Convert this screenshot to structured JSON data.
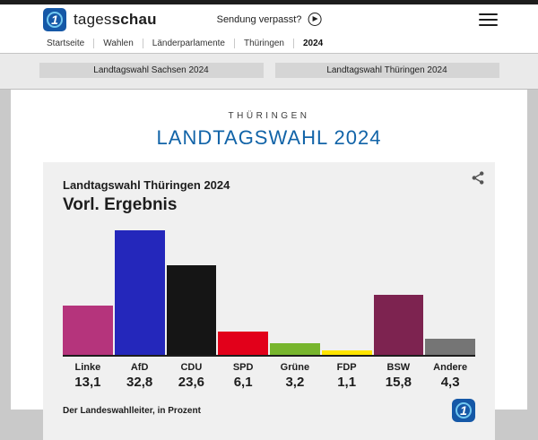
{
  "header": {
    "brand_regular": "tages",
    "brand_bold": "schau",
    "sendung_verpasst": "Sendung verpasst?"
  },
  "breadcrumb": {
    "items": [
      {
        "label": "Startseite",
        "active": false
      },
      {
        "label": "Wahlen",
        "active": false
      },
      {
        "label": "Länderparlamente",
        "active": false
      },
      {
        "label": "Thüringen",
        "active": false
      },
      {
        "label": "2024",
        "active": true
      }
    ]
  },
  "tabs": [
    {
      "label": "Landtagswahl Sachsen 2024"
    },
    {
      "label": "Landtagswahl Thüringen 2024"
    }
  ],
  "page": {
    "kicker": "THÜRINGEN",
    "title": "LANDTAGSWAHL 2024"
  },
  "chart_data": {
    "type": "bar",
    "title": "Landtagswahl Thüringen 2024",
    "subtitle": "Vorl. Ergebnis",
    "categories": [
      "Linke",
      "AfD",
      "CDU",
      "SPD",
      "Grüne",
      "FDP",
      "BSW",
      "Andere"
    ],
    "values": [
      13.1,
      32.8,
      23.6,
      6.1,
      3.2,
      1.1,
      15.8,
      4.3
    ],
    "value_labels": [
      "13,1",
      "32,8",
      "23,6",
      "6,1",
      "3,2",
      "1,1",
      "15,8",
      "4,3"
    ],
    "colors": [
      "#b5347c",
      "#2427bb",
      "#151515",
      "#e2001a",
      "#77b52d",
      "#ffe500",
      "#7d2350",
      "#757575"
    ],
    "ylim": [
      0,
      35
    ],
    "ylabel": "",
    "xlabel": "",
    "source": "Der Landeswahlleiter, in Prozent",
    "legend": "none",
    "grid": false
  },
  "icons": {
    "brand": "tagesschau-1-globe",
    "play": "circle-play",
    "menu": "hamburger",
    "share": "share-nodes"
  },
  "colors": {
    "accent_blue": "#1264a8",
    "brand_blue": "#1558a7",
    "top_strip": "#1d1d1d",
    "chart_bg": "#f0f0f0"
  }
}
